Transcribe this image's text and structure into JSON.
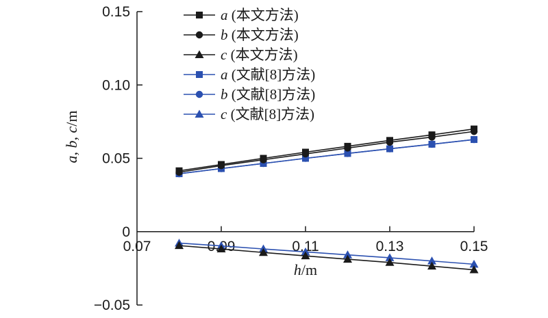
{
  "chart_data": {
    "type": "line",
    "xlabel": "h/m",
    "ylabel": "a, b, c/m",
    "x": [
      0.08,
      0.09,
      0.1,
      0.11,
      0.12,
      0.13,
      0.14,
      0.15
    ],
    "xlim": [
      0.07,
      0.15
    ],
    "ylim": [
      -0.05,
      0.15
    ],
    "xticks": [
      "0.07",
      "0.09",
      "0.11",
      "0.13",
      "0.15"
    ],
    "yticks": [
      "0.15",
      "0.10",
      "0.05",
      "0",
      "−0.05"
    ],
    "grid": false,
    "legend_position": "top-left",
    "series": [
      {
        "name": "a (本文方法)",
        "color": "#1a1a1a",
        "marker": "square",
        "values": [
          0.0415,
          0.0458,
          0.05,
          0.0542,
          0.0582,
          0.0622,
          0.066,
          0.07
        ]
      },
      {
        "name": "b (本文方法)",
        "color": "#1a1a1a",
        "marker": "circle",
        "values": [
          0.0405,
          0.045,
          0.049,
          0.053,
          0.057,
          0.061,
          0.0645,
          0.0683
        ]
      },
      {
        "name": "c (本文方法)",
        "color": "#1a1a1a",
        "marker": "triangle",
        "values": [
          -0.0095,
          -0.0118,
          -0.0142,
          -0.0165,
          -0.0188,
          -0.021,
          -0.0235,
          -0.026
        ]
      },
      {
        "name": "a (文献[8]方法)",
        "color": "#2b50b0",
        "marker": "square",
        "values": [
          0.0395,
          0.043,
          0.0465,
          0.05,
          0.0533,
          0.0565,
          0.0596,
          0.0628
        ]
      },
      {
        "name": "b (文献[8]方法)",
        "color": "#2b50b0",
        "marker": "circle",
        "values": [
          0.0395,
          0.043,
          0.0465,
          0.05,
          0.0533,
          0.0565,
          0.0596,
          0.0628
        ]
      },
      {
        "name": "c (文献[8]方法)",
        "color": "#2b50b0",
        "marker": "triangle",
        "values": [
          -0.0078,
          -0.0097,
          -0.0118,
          -0.0138,
          -0.0158,
          -0.0178,
          -0.02,
          -0.0222
        ]
      }
    ]
  }
}
